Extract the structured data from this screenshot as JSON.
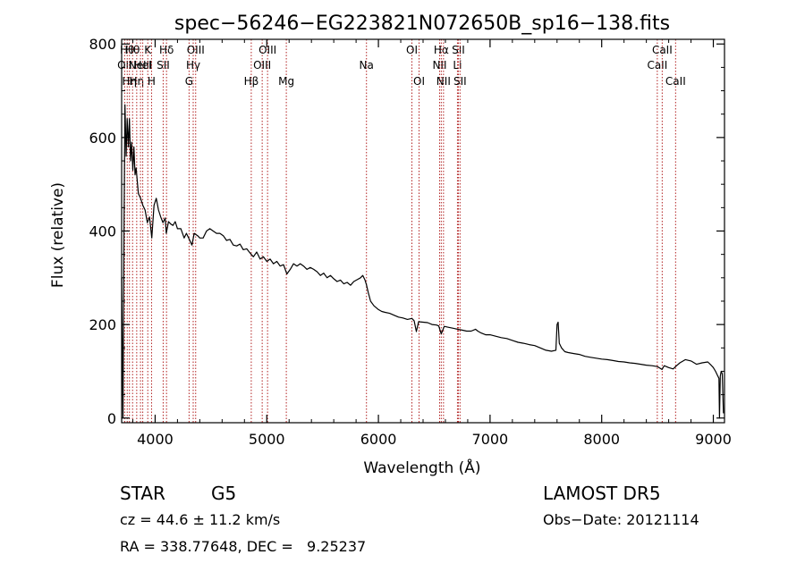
{
  "chart_data": {
    "type": "line",
    "title": "spec−56246−EG223821N072650B_sp16−138.fits",
    "xlabel": "Wavelength (Å)",
    "ylabel": "Flux (relative)",
    "xlim": [
      3700,
      9100
    ],
    "ylim": [
      -10,
      810
    ],
    "xticks": [
      4000,
      5000,
      6000,
      7000,
      8000,
      9000
    ],
    "yticks": [
      0,
      200,
      400,
      600,
      800
    ],
    "xtick_labels": [
      "4000",
      "5000",
      "6000",
      "7000",
      "8000",
      "9000"
    ],
    "ytick_labels": [
      "0",
      "200",
      "400",
      "600",
      "800"
    ],
    "grid": false,
    "line_color": "#000000",
    "marker_line_color": "#b22222",
    "series": [
      {
        "values": [
          [
            3700,
            300
          ],
          [
            3712,
            0
          ],
          [
            3722,
            420
          ],
          [
            3730,
            670
          ],
          [
            3740,
            560
          ],
          [
            3750,
            640
          ],
          [
            3760,
            580
          ],
          [
            3770,
            640
          ],
          [
            3780,
            550
          ],
          [
            3790,
            590
          ],
          [
            3800,
            530
          ],
          [
            3810,
            580
          ],
          [
            3820,
            520
          ],
          [
            3830,
            535
          ],
          [
            3850,
            480
          ],
          [
            3870,
            470
          ],
          [
            3890,
            455
          ],
          [
            3910,
            445
          ],
          [
            3930,
            418
          ],
          [
            3950,
            430
          ],
          [
            3970,
            385
          ],
          [
            3990,
            455
          ],
          [
            4010,
            470
          ],
          [
            4030,
            445
          ],
          [
            4050,
            430
          ],
          [
            4070,
            418
          ],
          [
            4090,
            428
          ],
          [
            4100,
            395
          ],
          [
            4120,
            420
          ],
          [
            4140,
            415
          ],
          [
            4160,
            412
          ],
          [
            4180,
            420
          ],
          [
            4200,
            405
          ],
          [
            4230,
            405
          ],
          [
            4260,
            385
          ],
          [
            4280,
            395
          ],
          [
            4300,
            385
          ],
          [
            4330,
            370
          ],
          [
            4350,
            395
          ],
          [
            4380,
            390
          ],
          [
            4400,
            385
          ],
          [
            4430,
            385
          ],
          [
            4460,
            400
          ],
          [
            4490,
            405
          ],
          [
            4520,
            400
          ],
          [
            4550,
            395
          ],
          [
            4580,
            395
          ],
          [
            4610,
            390
          ],
          [
            4640,
            380
          ],
          [
            4670,
            382
          ],
          [
            4700,
            370
          ],
          [
            4730,
            368
          ],
          [
            4760,
            372
          ],
          [
            4790,
            360
          ],
          [
            4820,
            362
          ],
          [
            4861,
            350
          ],
          [
            4880,
            345
          ],
          [
            4910,
            355
          ],
          [
            4940,
            340
          ],
          [
            4970,
            345
          ],
          [
            5000,
            335
          ],
          [
            5030,
            340
          ],
          [
            5060,
            330
          ],
          [
            5090,
            335
          ],
          [
            5120,
            325
          ],
          [
            5150,
            328
          ],
          [
            5180,
            308
          ],
          [
            5210,
            318
          ],
          [
            5240,
            330
          ],
          [
            5270,
            325
          ],
          [
            5300,
            330
          ],
          [
            5330,
            325
          ],
          [
            5360,
            318
          ],
          [
            5390,
            322
          ],
          [
            5420,
            318
          ],
          [
            5450,
            313
          ],
          [
            5480,
            305
          ],
          [
            5510,
            310
          ],
          [
            5540,
            300
          ],
          [
            5570,
            305
          ],
          [
            5600,
            298
          ],
          [
            5630,
            292
          ],
          [
            5660,
            295
          ],
          [
            5690,
            287
          ],
          [
            5720,
            290
          ],
          [
            5750,
            284
          ],
          [
            5780,
            292
          ],
          [
            5810,
            296
          ],
          [
            5840,
            300
          ],
          [
            5860,
            305
          ],
          [
            5880,
            295
          ],
          [
            5893,
            285
          ],
          [
            5910,
            268
          ],
          [
            5930,
            250
          ],
          [
            5960,
            240
          ],
          [
            6000,
            232
          ],
          [
            6030,
            228
          ],
          [
            6060,
            226
          ],
          [
            6100,
            224
          ],
          [
            6140,
            220
          ],
          [
            6180,
            216
          ],
          [
            6220,
            214
          ],
          [
            6260,
            211
          ],
          [
            6300,
            213
          ],
          [
            6320,
            208
          ],
          [
            6340,
            185
          ],
          [
            6360,
            206
          ],
          [
            6400,
            205
          ],
          [
            6440,
            204
          ],
          [
            6480,
            200
          ],
          [
            6520,
            199
          ],
          [
            6540,
            197
          ],
          [
            6563,
            180
          ],
          [
            6590,
            196
          ],
          [
            6630,
            194
          ],
          [
            6670,
            192
          ],
          [
            6710,
            190
          ],
          [
            6750,
            188
          ],
          [
            6790,
            186
          ],
          [
            6830,
            186
          ],
          [
            6870,
            190
          ],
          [
            6890,
            186
          ],
          [
            6920,
            182
          ],
          [
            6960,
            178
          ],
          [
            7000,
            178
          ],
          [
            7050,
            175
          ],
          [
            7100,
            172
          ],
          [
            7150,
            170
          ],
          [
            7200,
            166
          ],
          [
            7250,
            162
          ],
          [
            7300,
            160
          ],
          [
            7350,
            157
          ],
          [
            7400,
            155
          ],
          [
            7450,
            150
          ],
          [
            7500,
            145
          ],
          [
            7550,
            143
          ],
          [
            7590,
            145
          ],
          [
            7600,
            200
          ],
          [
            7610,
            205
          ],
          [
            7620,
            160
          ],
          [
            7640,
            150
          ],
          [
            7670,
            142
          ],
          [
            7700,
            140
          ],
          [
            7750,
            138
          ],
          [
            7800,
            136
          ],
          [
            7850,
            132
          ],
          [
            7900,
            130
          ],
          [
            7950,
            128
          ],
          [
            8000,
            126
          ],
          [
            8050,
            125
          ],
          [
            8100,
            123
          ],
          [
            8150,
            121
          ],
          [
            8200,
            120
          ],
          [
            8250,
            118
          ],
          [
            8300,
            117
          ],
          [
            8350,
            115
          ],
          [
            8400,
            113
          ],
          [
            8450,
            112
          ],
          [
            8500,
            110
          ],
          [
            8540,
            104
          ],
          [
            8560,
            112
          ],
          [
            8600,
            108
          ],
          [
            8640,
            105
          ],
          [
            8662,
            110
          ],
          [
            8700,
            118
          ],
          [
            8750,
            125
          ],
          [
            8800,
            122
          ],
          [
            8850,
            115
          ],
          [
            8900,
            118
          ],
          [
            8950,
            120
          ],
          [
            8980,
            113
          ],
          [
            9000,
            108
          ],
          [
            9020,
            100
          ],
          [
            9040,
            90
          ],
          [
            9050,
            85
          ],
          [
            9055,
            0
          ],
          [
            9062,
            90
          ],
          [
            9070,
            100
          ],
          [
            9080,
            95
          ],
          [
            9090,
            10
          ]
        ]
      }
    ],
    "line_markers": [
      {
        "wavelength": 3727,
        "label": "OII",
        "row": 1
      },
      {
        "wavelength": 3750,
        "label": "Hθ",
        "row": 0
      },
      {
        "wavelength": 3770,
        "label": "Hη",
        "row": 2
      },
      {
        "wavelength": 3798,
        "label": "Hθ",
        "row": 0
      },
      {
        "wavelength": 3835,
        "label": "Hη",
        "row": 2
      },
      {
        "wavelength": 3869,
        "label": "NeIII",
        "row": 1
      },
      {
        "wavelength": 3889,
        "label": "HeI",
        "row": 1
      },
      {
        "wavelength": 3934,
        "label": "K",
        "row": 0
      },
      {
        "wavelength": 3968,
        "label": "H",
        "row": 2
      },
      {
        "wavelength": 4072,
        "label": "SII",
        "row": 1
      },
      {
        "wavelength": 4102,
        "label": "Hδ",
        "row": 0
      },
      {
        "wavelength": 4304,
        "label": "G",
        "row": 2
      },
      {
        "wavelength": 4341,
        "label": "Hγ",
        "row": 1
      },
      {
        "wavelength": 4363,
        "label": "OIII",
        "row": 0
      },
      {
        "wavelength": 4861,
        "label": "Hβ",
        "row": 2
      },
      {
        "wavelength": 4959,
        "label": "OIII",
        "row": 1
      },
      {
        "wavelength": 5007,
        "label": "OIII",
        "row": 0
      },
      {
        "wavelength": 5175,
        "label": "Mg",
        "row": 2
      },
      {
        "wavelength": 5893,
        "label": "Na",
        "row": 1
      },
      {
        "wavelength": 6300,
        "label": "OI",
        "row": 0
      },
      {
        "wavelength": 6364,
        "label": "OI",
        "row": 2
      },
      {
        "wavelength": 6548,
        "label": "NII",
        "row": 1
      },
      {
        "wavelength": 6563,
        "label": "Hα",
        "row": 0
      },
      {
        "wavelength": 6583,
        "label": "NII",
        "row": 2
      },
      {
        "wavelength": 6708,
        "label": "Li",
        "row": 1
      },
      {
        "wavelength": 6716,
        "label": "SII",
        "row": 0
      },
      {
        "wavelength": 6731,
        "label": "SII",
        "row": 2
      },
      {
        "wavelength": 8498,
        "label": "CaII",
        "row": 1
      },
      {
        "wavelength": 8542,
        "label": "CaII",
        "row": 0
      },
      {
        "wavelength": 8662,
        "label": "CaII",
        "row": 2
      }
    ]
  },
  "info": {
    "class_label": "STAR",
    "subclass_label": "G5",
    "survey_label": "LAMOST DR5",
    "redshift_text": "cz = 44.6 ± 11.2 km/s",
    "obs_date_text": "Obs−Date: 20121114",
    "coords_text": "RA = 338.77648, DEC =   9.25237"
  }
}
